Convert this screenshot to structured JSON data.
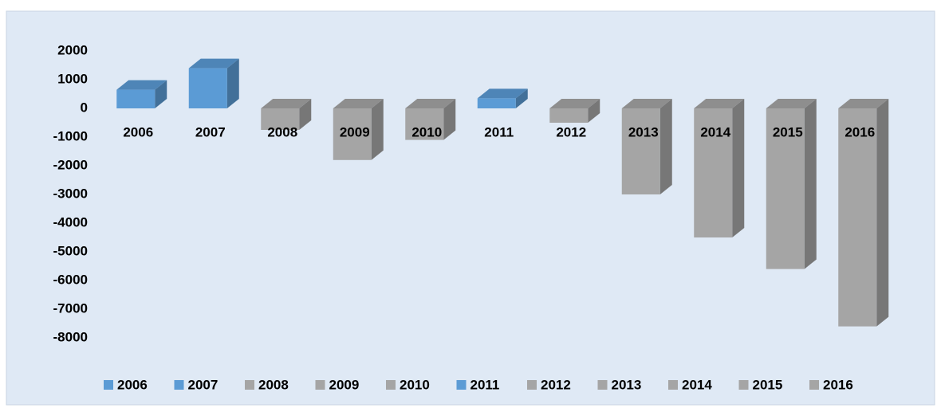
{
  "chart_data": {
    "type": "bar3d",
    "categories": [
      "2006",
      "2007",
      "2008",
      "2009",
      "2010",
      "2011",
      "2012",
      "2013",
      "2014",
      "2015",
      "2016"
    ],
    "values": [
      650,
      1400,
      -750,
      -1800,
      -1100,
      350,
      -500,
      -3000,
      -4500,
      -5600,
      -7600
    ],
    "colors": [
      "#5b9bd5",
      "#5b9bd5",
      "#a5a5a5",
      "#a5a5a5",
      "#a5a5a5",
      "#5b9bd5",
      "#a5a5a5",
      "#a5a5a5",
      "#a5a5a5",
      "#a5a5a5",
      "#a5a5a5"
    ],
    "ylim": [
      -8000,
      2000
    ],
    "yticks": [
      2000,
      1000,
      0,
      -1000,
      -2000,
      -3000,
      -4000,
      -5000,
      -6000,
      -7000,
      -8000
    ],
    "legend": "bottom"
  }
}
